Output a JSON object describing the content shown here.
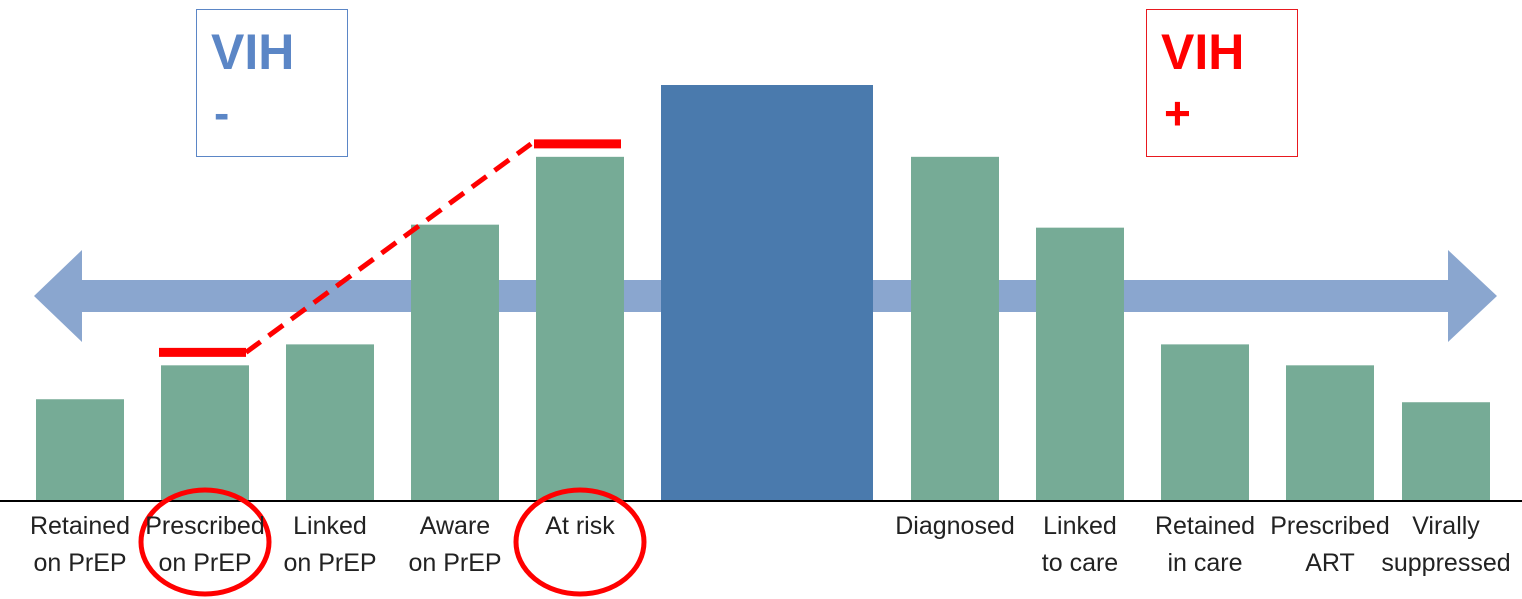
{
  "chart_data": {
    "type": "bar",
    "categories": [
      [
        "Retained",
        "on PrEP"
      ],
      [
        "Prescribed",
        "on PrEP"
      ],
      [
        "Linked",
        "on PrEP"
      ],
      [
        "Aware",
        "on PrEP"
      ],
      [
        "At risk"
      ],
      [],
      [
        "Diagnosed"
      ],
      [
        "Linked",
        "to care"
      ],
      [
        "Retained",
        "in care"
      ],
      [
        "Prescribed",
        "ART"
      ],
      [
        "Virally",
        "suppressed"
      ]
    ],
    "values": [
      101,
      135,
      156,
      276,
      344,
      416,
      344,
      273,
      156,
      135,
      98
    ],
    "ylim": [
      0,
      416
    ],
    "highlighted_categories": [
      1,
      4
    ],
    "target_markers": [
      {
        "category": 1,
        "value": 148
      },
      {
        "category": 4,
        "value": 357
      }
    ],
    "groups": {
      "negative_label": [
        "VIH",
        "-"
      ],
      "positive_label": [
        "VIH",
        "+"
      ]
    },
    "colors": {
      "bar": "#76ab96",
      "center_bar": "#4a7aad",
      "arrow": "#8aa6cf",
      "marker": "#ff0000",
      "negative": "#5b86c6",
      "positive": "#ff0000"
    }
  }
}
